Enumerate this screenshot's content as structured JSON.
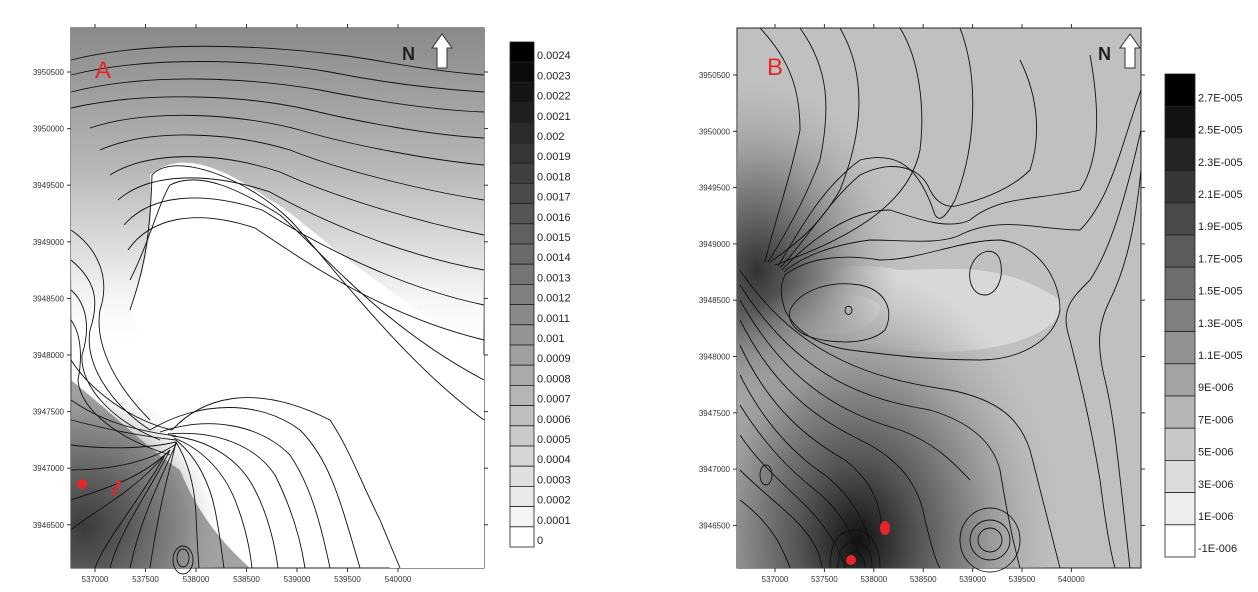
{
  "maps": [
    {
      "panel_label": "A",
      "north_label": "N",
      "x_ticks": [
        "537000",
        "537500",
        "538000",
        "538500",
        "539000",
        "539500",
        "540000"
      ],
      "y_ticks": [
        "3950500",
        "3950000",
        "3949500",
        "3949000",
        "3948500",
        "3948000",
        "3947500",
        "3947000",
        "3946500"
      ],
      "legend": [
        "0.0024",
        "0.0023",
        "0.0022",
        "0.0021",
        "0.002",
        "0.0019",
        "0.0018",
        "0.0017",
        "0.0016",
        "0.0015",
        "0.0014",
        "0.0013",
        "0.0012",
        "0.0011",
        "0.001",
        "0.0009",
        "0.0008",
        "0.0007",
        "0.0006",
        "0.0005",
        "0.0004",
        "0.0003",
        "0.0002",
        "0.0001",
        "0"
      ],
      "marker_color": "#e8262a"
    },
    {
      "panel_label": "B",
      "north_label": "N",
      "x_ticks": [
        "537000",
        "537500",
        "538000",
        "538500",
        "539000",
        "539500",
        "540000"
      ],
      "y_ticks": [
        "3950500",
        "3950000",
        "3949500",
        "3949000",
        "3948500",
        "3948000",
        "3947500",
        "3947000",
        "3946500"
      ],
      "legend": [
        "2.7E-005",
        "2.5E-005",
        "2.3E-005",
        "2.1E-005",
        "1.9E-005",
        "1.7E-005",
        "1.5E-005",
        "1.3E-005",
        "1.1E-005",
        "9E-006",
        "7E-006",
        "5E-006",
        "3E-006",
        "1E-006",
        "-1E-006"
      ],
      "marker_color": "#e8262a"
    }
  ]
}
